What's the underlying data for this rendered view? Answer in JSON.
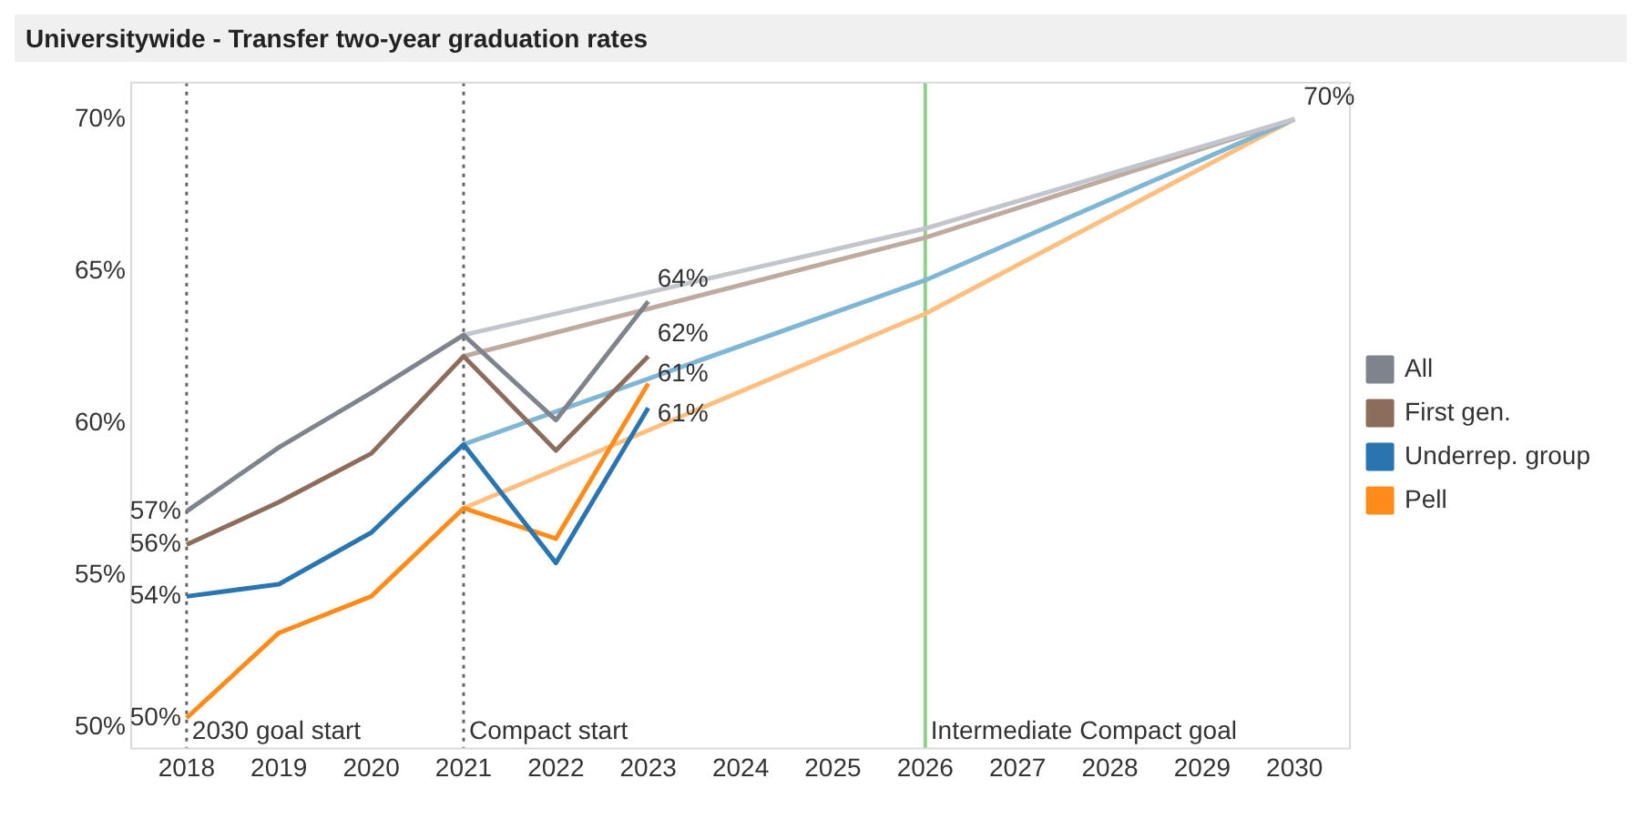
{
  "chart_data": {
    "type": "line",
    "title": "Universitywide - Transfer two-year graduation rates",
    "xlim": [
      2017.4,
      2030.6
    ],
    "xticks": [
      2018,
      2019,
      2020,
      2021,
      2022,
      2023,
      2024,
      2025,
      2026,
      2027,
      2028,
      2029,
      2030
    ],
    "ylim": [
      49.3,
      71.2
    ],
    "yticks": [
      {
        "value": 50,
        "label": "50%"
      },
      {
        "value": 55,
        "label": "55%"
      },
      {
        "value": 60,
        "label": "60%"
      },
      {
        "value": 65,
        "label": "65%"
      },
      {
        "value": 70,
        "label": "70%"
      }
    ],
    "grid": false,
    "legend": "right",
    "marker": "none",
    "line_style": "solid",
    "series": [
      {
        "name": "All",
        "color": "#7e838c",
        "x": [
          2018,
          2019,
          2020,
          2021,
          2022,
          2023
        ],
        "values": [
          57.1,
          59.2,
          61.0,
          62.9,
          60.1,
          64.0
        ],
        "value_labels": [
          "57%",
          null,
          null,
          null,
          null,
          "64%"
        ]
      },
      {
        "name": "First gen.",
        "color": "#8c6d5c",
        "x": [
          2018,
          2019,
          2020,
          2021,
          2022,
          2023
        ],
        "values": [
          56.0,
          57.4,
          59.0,
          62.2,
          59.1,
          62.2
        ],
        "value_labels": [
          "56%",
          null,
          null,
          null,
          null,
          "62%"
        ]
      },
      {
        "name": "Underrep. group",
        "color": "#2a75b0",
        "x": [
          2018,
          2019,
          2020,
          2021,
          2022,
          2023
        ],
        "values": [
          54.3,
          54.7,
          56.4,
          59.3,
          55.4,
          60.5
        ],
        "value_labels": [
          "54%",
          null,
          null,
          null,
          null,
          "61%"
        ]
      },
      {
        "name": "Pell",
        "color": "#ff8c1a",
        "x": [
          2018,
          2019,
          2020,
          2021,
          2022,
          2023
        ],
        "values": [
          50.3,
          53.1,
          54.3,
          57.2,
          56.2,
          61.3
        ],
        "value_labels": [
          "50%",
          null,
          null,
          null,
          null,
          "61%"
        ]
      },
      {
        "color": "#c2c5cc",
        "x": [
          2021,
          2026,
          2030
        ],
        "values": [
          62.9,
          66.4,
          70
        ],
        "value_labels": [
          null,
          null,
          "70%"
        ]
      },
      {
        "color": "#bfaaa0",
        "x": [
          2021,
          2026,
          2030
        ],
        "values": [
          62.2,
          66.1,
          70
        ]
      },
      {
        "color": "#7fb6d6",
        "x": [
          2021,
          2026,
          2030
        ],
        "values": [
          59.3,
          64.7,
          70
        ]
      },
      {
        "color": "#ffbf80",
        "x": [
          2021,
          2026,
          2030
        ],
        "values": [
          57.2,
          63.6,
          70
        ]
      }
    ],
    "ref_lines": [
      {
        "axis": "x",
        "value": 2018,
        "label": "2030 goal start",
        "color": "#666666",
        "line_style": "dotted"
      },
      {
        "axis": "x",
        "value": 2021,
        "label": "Compact start",
        "color": "#666666",
        "line_style": "dotted"
      },
      {
        "axis": "x",
        "value": 2026,
        "label": "Intermediate Compact goal",
        "color": "#8fd18a",
        "line_style": "solid"
      }
    ]
  }
}
